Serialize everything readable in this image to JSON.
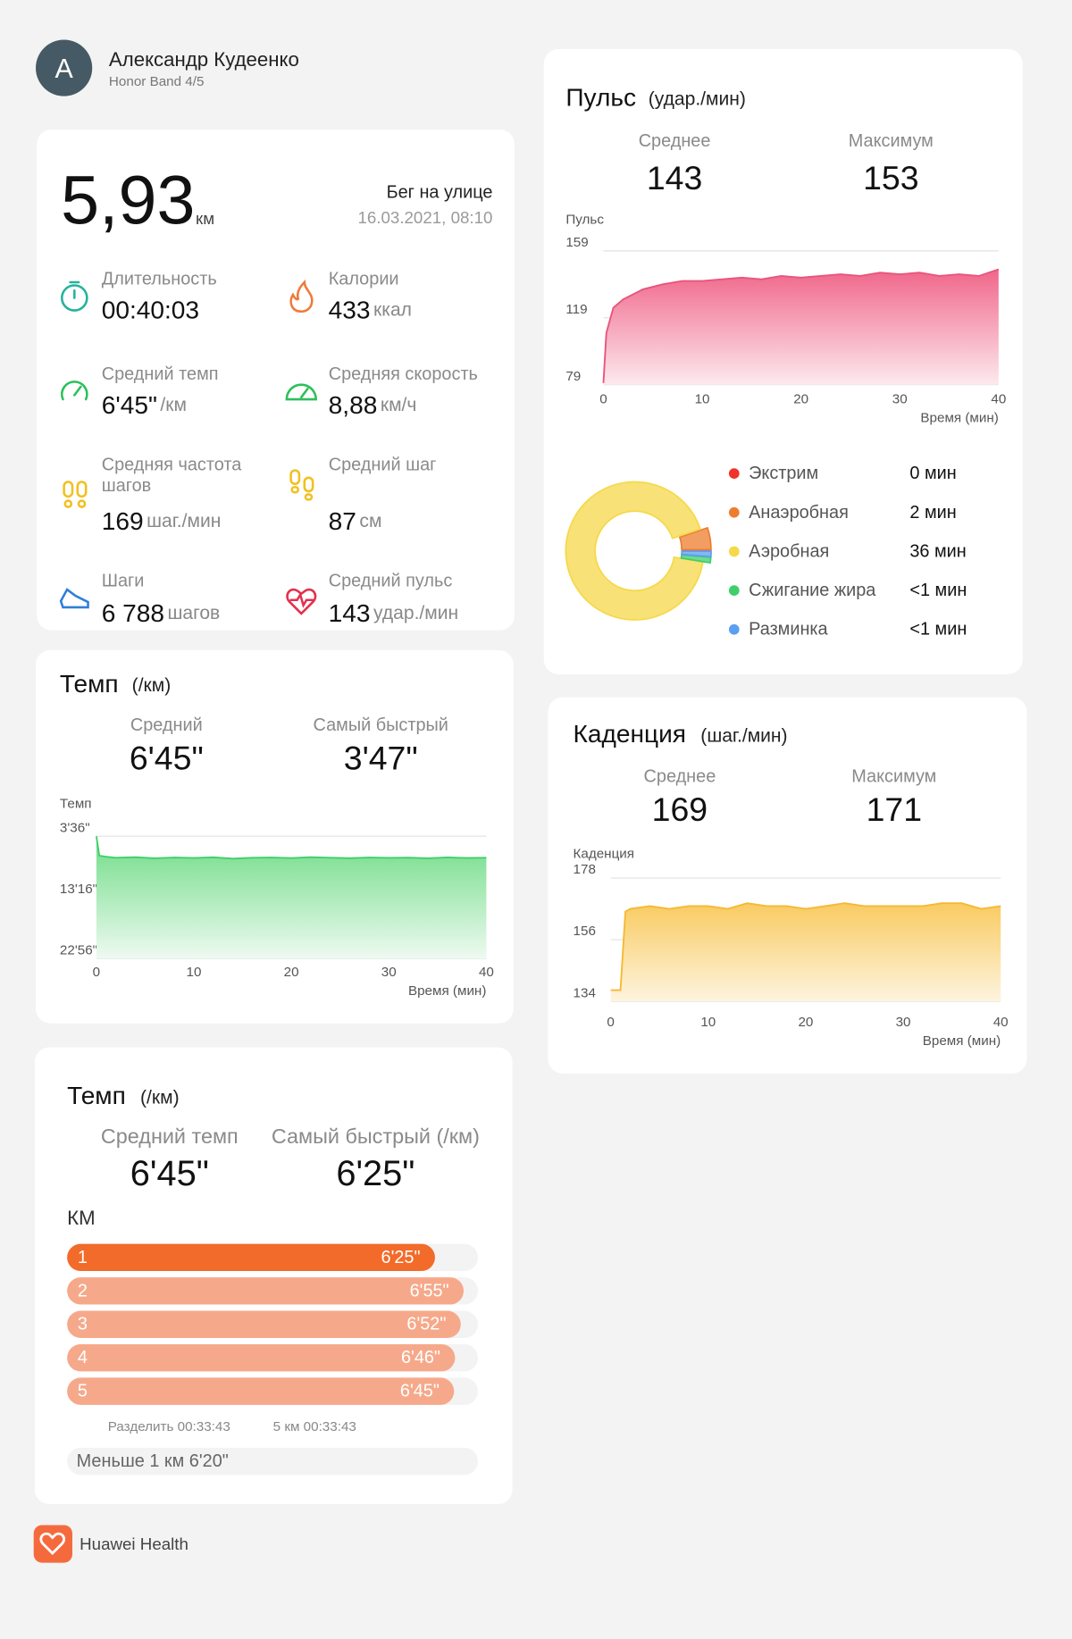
{
  "header": {
    "avatar": "A",
    "name": "Александр Кудеенко",
    "device": "Honor Band 4/5"
  },
  "summary": {
    "distance": "5,93",
    "distance_unit": "км",
    "activity": "Бег на улице",
    "datetime": "16.03.2021, 08:10",
    "metrics": [
      {
        "label": "Длительность",
        "value": "00:40:03"
      },
      {
        "label": "Калории",
        "value": "433",
        "unit": "ккал"
      },
      {
        "label": "Средний темп",
        "value": "6'45\"",
        "unit": "/км"
      },
      {
        "label": "Средняя скорость",
        "value": "8,88",
        "unit": "км/ч"
      },
      {
        "label": "Средняя частота шагов",
        "value": "169",
        "unit": "шаг./мин"
      },
      {
        "label": "Средний шаг",
        "value": "87",
        "unit": "см"
      },
      {
        "label": "Шаги",
        "value": "6 788",
        "unit": "шагов"
      },
      {
        "label": "Средний пульс",
        "value": "143",
        "unit": "удар./мин"
      }
    ]
  },
  "heart_rate": {
    "title": "Пульс",
    "unit": "(удар./мин)",
    "stats": [
      {
        "label": "Среднее",
        "value": "143"
      },
      {
        "label": "Максимум",
        "value": "153"
      }
    ],
    "chart": {
      "type": "area",
      "y_label": "Пульс",
      "x_label": "Время (мин)",
      "color": "#e8557c",
      "xlim": [
        0,
        40
      ],
      "xticks": [
        0,
        10,
        20,
        30,
        40
      ],
      "ylim": [
        79,
        159
      ],
      "yticks": [
        79,
        119,
        159
      ],
      "grid": true,
      "x": [
        0,
        0.3,
        1,
        2,
        4,
        6,
        8,
        10,
        12,
        14,
        16,
        18,
        20,
        22,
        24,
        26,
        28,
        30,
        32,
        34,
        36,
        38,
        40
      ],
      "values": [
        80,
        110,
        125,
        130,
        136,
        139,
        141,
        141,
        142,
        143,
        142,
        144,
        143,
        144,
        145,
        144,
        146,
        145,
        146,
        144,
        145,
        144,
        148
      ]
    },
    "zones": {
      "type": "pie",
      "categories": [
        "Экстрим",
        "Анаэробная",
        "Аэробная",
        "Сжигание жира",
        "Разминка"
      ],
      "values": [
        0,
        2,
        36,
        0.5,
        0.5
      ],
      "value_labels": [
        "0 мин",
        "2 мин",
        "36 мин",
        "<1 мин",
        "<1 мин"
      ],
      "colors": [
        "#f0332b",
        "#ee7d2e",
        "#f6d84a",
        "#3fcf6a",
        "#5b9ff0"
      ]
    }
  },
  "pace": {
    "title": "Темп",
    "unit": "(/км)",
    "stats": [
      {
        "label": "Средний",
        "value": "6'45\""
      },
      {
        "label": "Самый быстрый",
        "value": "3'47\""
      }
    ],
    "chart": {
      "type": "area",
      "y_label": "Темп",
      "x_label": "Время (мин)",
      "color": "#3fcf6a",
      "y_inverted": true,
      "xlim": [
        0,
        40
      ],
      "xticks": [
        0,
        10,
        20,
        30,
        40
      ],
      "ylim": [
        216,
        1376
      ],
      "yticks": [
        {
          "value": 216,
          "label": "3'36\""
        },
        {
          "value": 796,
          "label": "13'16\""
        },
        {
          "value": 1376,
          "label": "22'56\""
        }
      ],
      "grid": true,
      "x": [
        0,
        0.3,
        1,
        2,
        4,
        6,
        8,
        10,
        12,
        14,
        16,
        18,
        20,
        22,
        24,
        26,
        28,
        30,
        32,
        34,
        36,
        38,
        40
      ],
      "values": [
        216,
        400,
        410,
        420,
        415,
        425,
        418,
        422,
        416,
        428,
        420,
        418,
        423,
        415,
        420,
        424,
        418,
        421,
        419,
        425,
        417,
        422,
        420
      ]
    }
  },
  "cadence": {
    "title": "Каденция",
    "unit": "(шаг./мин)",
    "stats": [
      {
        "label": "Среднее",
        "value": "169"
      },
      {
        "label": "Максимум",
        "value": "171"
      }
    ],
    "chart": {
      "type": "area",
      "y_label": "Каденция",
      "x_label": "Время (мин)",
      "color": "#f5b932",
      "xlim": [
        0,
        40
      ],
      "xticks": [
        0,
        10,
        20,
        30,
        40
      ],
      "ylim": [
        134,
        178
      ],
      "yticks": [
        134,
        156,
        178
      ],
      "grid": true,
      "x": [
        0,
        1,
        1.5,
        2,
        4,
        6,
        8,
        10,
        12,
        14,
        16,
        18,
        20,
        22,
        24,
        26,
        28,
        30,
        32,
        34,
        36,
        38,
        40
      ],
      "values": [
        138,
        138,
        166,
        167,
        168,
        167,
        168,
        168,
        167,
        169,
        168,
        168,
        167,
        168,
        169,
        168,
        168,
        168,
        168,
        169,
        169,
        167,
        168
      ]
    }
  },
  "splits": {
    "title": "Темп",
    "unit": "(/км)",
    "stats": [
      {
        "label": "Средний темп",
        "value": "6'45\""
      },
      {
        "label": "Самый быстрый (/км)",
        "value": "6'25\""
      }
    ],
    "axis_label": "КМ",
    "chart": {
      "type": "bar",
      "categories": [
        "1",
        "2",
        "3",
        "4",
        "5"
      ],
      "values": [
        385,
        415,
        412,
        406,
        405
      ],
      "value_labels": [
        "6'25\"",
        "6'55\"",
        "6'52\"",
        "6'46\"",
        "6'45\""
      ],
      "colors": [
        "#f26b2a",
        "#f6a98a",
        "#f6a98a",
        "#f6a98a",
        "#f6a98a"
      ],
      "xlim": [
        0,
        430
      ]
    },
    "split_time": "Разделить 00:33:43",
    "total": "5 км 00:33:43",
    "remainder": "Меньше 1 км 6'20\""
  },
  "footer": {
    "app": "Huawei Health"
  }
}
